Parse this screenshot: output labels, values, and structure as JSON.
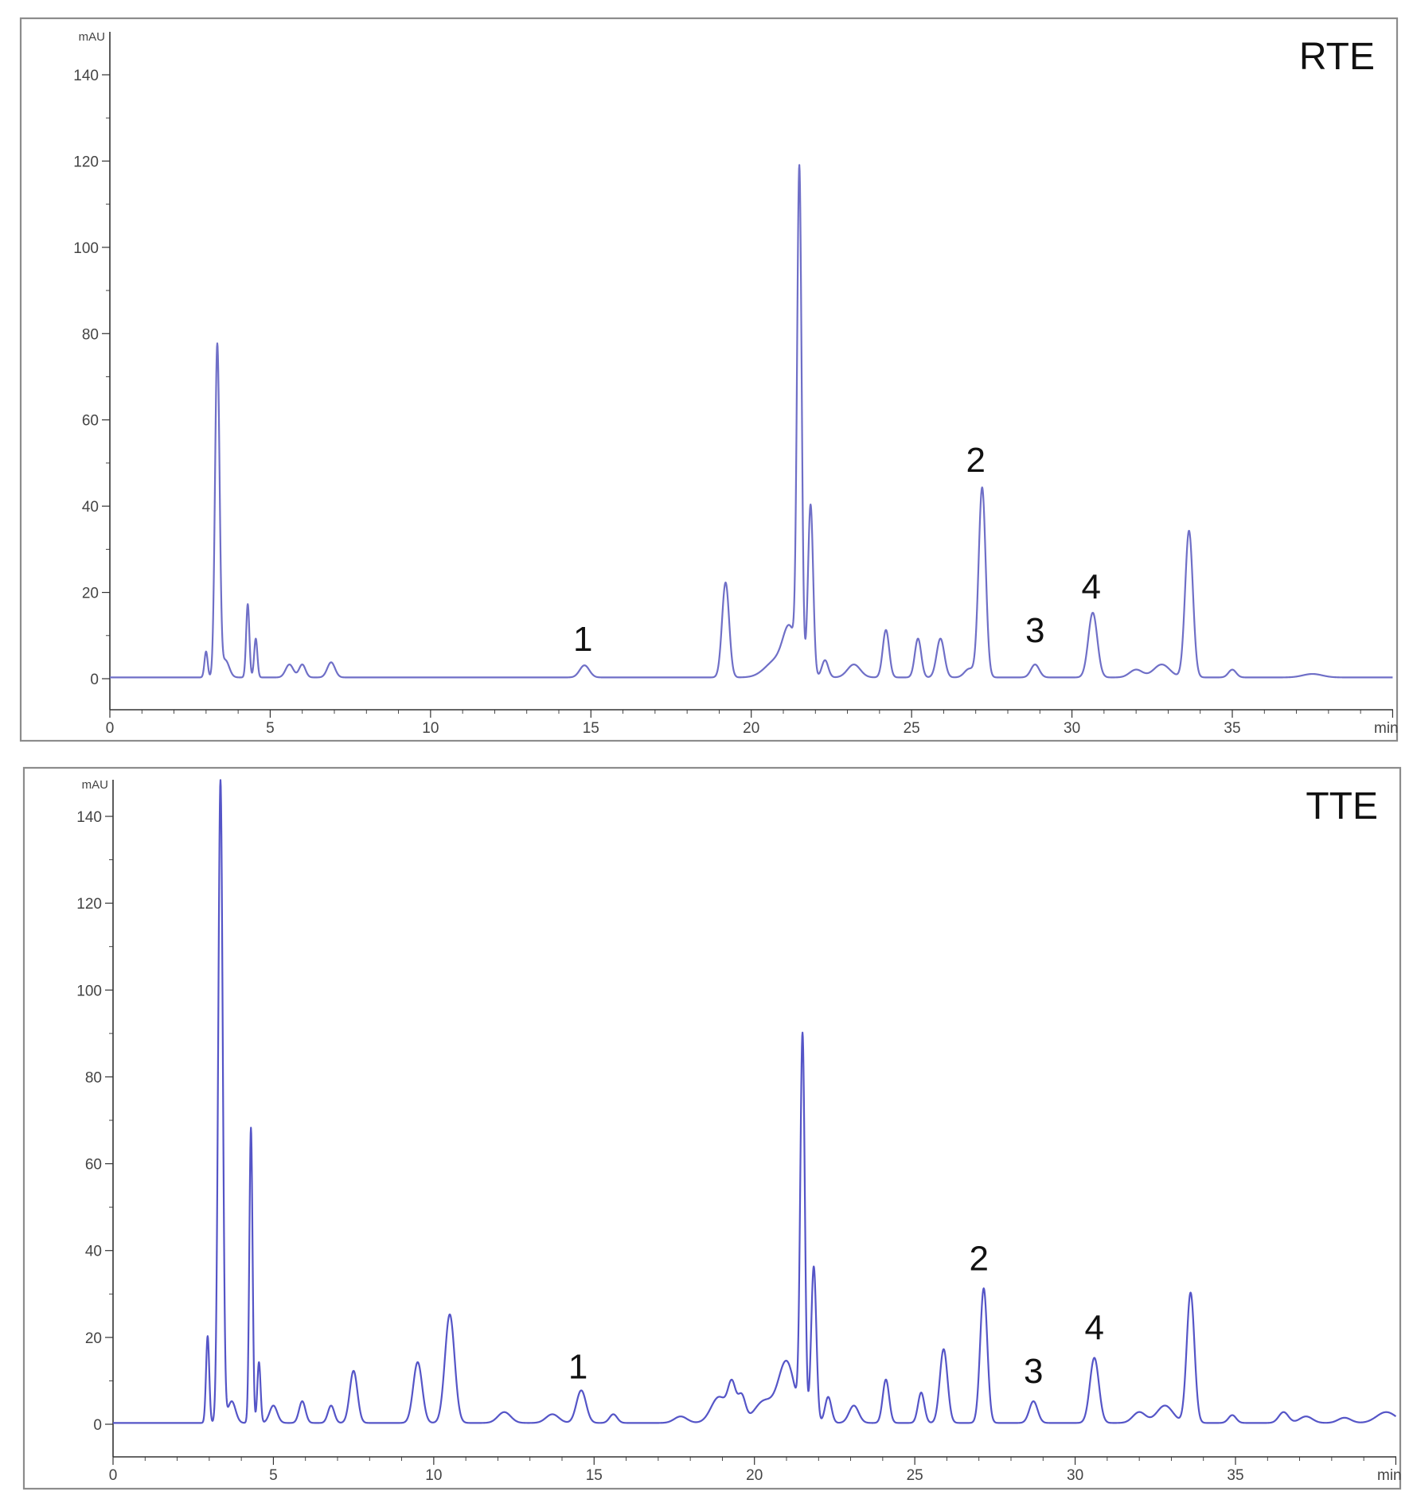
{
  "chart_data": [
    {
      "type": "line",
      "title": "RTE",
      "xlabel": "min",
      "ylabel": "mAU",
      "xlim": [
        0,
        40
      ],
      "ylim": [
        -7,
        150
      ],
      "x_ticks": [
        "0",
        "5",
        "10",
        "15",
        "20",
        "25",
        "30",
        "35"
      ],
      "x_tick_values": [
        0,
        5,
        10,
        15,
        20,
        25,
        30,
        35
      ],
      "y_ticks": [
        "0",
        "20",
        "40",
        "60",
        "80",
        "100",
        "120",
        "140"
      ],
      "y_tick_values": [
        0,
        20,
        40,
        60,
        80,
        100,
        120,
        140
      ],
      "color": "#6f6fc7",
      "baseline": 0.3,
      "peaks": [
        {
          "t": 3.0,
          "h": 6,
          "w": 0.05
        },
        {
          "t": 3.35,
          "h": 77,
          "w": 0.07
        },
        {
          "t": 3.6,
          "h": 4,
          "w": 0.12
        },
        {
          "t": 4.3,
          "h": 17,
          "w": 0.05
        },
        {
          "t": 4.55,
          "h": 9,
          "w": 0.05
        },
        {
          "t": 5.6,
          "h": 3,
          "w": 0.12
        },
        {
          "t": 6.0,
          "h": 3,
          "w": 0.1
        },
        {
          "t": 6.9,
          "h": 3.5,
          "w": 0.12
        },
        {
          "t": 14.8,
          "h": 2.8,
          "w": 0.15
        },
        {
          "t": 19.2,
          "h": 22,
          "w": 0.11
        },
        {
          "t": 20.8,
          "h": 4,
          "w": 0.35
        },
        {
          "t": 21.2,
          "h": 10,
          "w": 0.2
        },
        {
          "t": 21.5,
          "h": 115,
          "w": 0.07
        },
        {
          "t": 21.85,
          "h": 40,
          "w": 0.08
        },
        {
          "t": 22.3,
          "h": 4,
          "w": 0.1
        },
        {
          "t": 23.2,
          "h": 3,
          "w": 0.2
        },
        {
          "t": 24.2,
          "h": 11,
          "w": 0.1
        },
        {
          "t": 25.2,
          "h": 9,
          "w": 0.1
        },
        {
          "t": 25.9,
          "h": 9,
          "w": 0.12
        },
        {
          "t": 26.8,
          "h": 2,
          "w": 0.15
        },
        {
          "t": 27.2,
          "h": 44,
          "w": 0.11
        },
        {
          "t": 28.85,
          "h": 3,
          "w": 0.13
        },
        {
          "t": 30.65,
          "h": 15,
          "w": 0.14
        },
        {
          "t": 32.0,
          "h": 1.8,
          "w": 0.2
        },
        {
          "t": 32.8,
          "h": 3,
          "w": 0.25
        },
        {
          "t": 33.65,
          "h": 34,
          "w": 0.12
        },
        {
          "t": 35.0,
          "h": 1.8,
          "w": 0.12
        },
        {
          "t": 37.5,
          "h": 0.8,
          "w": 0.3
        }
      ],
      "annotations": [
        {
          "text": "1",
          "t": 14.75,
          "y": 6.5
        },
        {
          "text": "2",
          "t": 27.0,
          "y": 48
        },
        {
          "text": "3",
          "t": 28.85,
          "y": 8.5
        },
        {
          "text": "4",
          "t": 30.6,
          "y": 18.5
        }
      ]
    },
    {
      "type": "line",
      "title": "TTE",
      "xlabel": "min",
      "ylabel": "mAU",
      "xlim": [
        0,
        40
      ],
      "ylim": [
        -7,
        150
      ],
      "x_ticks": [
        "0",
        "5",
        "10",
        "15",
        "20",
        "25",
        "30",
        "35"
      ],
      "x_tick_values": [
        0,
        5,
        10,
        15,
        20,
        25,
        30,
        35
      ],
      "y_ticks": [
        "0",
        "20",
        "40",
        "60",
        "80",
        "100",
        "120",
        "140"
      ],
      "y_tick_values": [
        0,
        20,
        40,
        60,
        80,
        100,
        120,
        140
      ],
      "color": "#5555c7",
      "baseline": 0.3,
      "peaks": [
        {
          "t": 2.95,
          "h": 20,
          "w": 0.05
        },
        {
          "t": 3.35,
          "h": 148,
          "w": 0.07
        },
        {
          "t": 3.7,
          "h": 5,
          "w": 0.12
        },
        {
          "t": 4.3,
          "h": 68,
          "w": 0.05
        },
        {
          "t": 4.55,
          "h": 14,
          "w": 0.05
        },
        {
          "t": 5.0,
          "h": 4,
          "w": 0.12
        },
        {
          "t": 5.9,
          "h": 5,
          "w": 0.1
        },
        {
          "t": 6.8,
          "h": 4,
          "w": 0.1
        },
        {
          "t": 7.5,
          "h": 12,
          "w": 0.12
        },
        {
          "t": 9.5,
          "h": 14,
          "w": 0.14
        },
        {
          "t": 10.5,
          "h": 25,
          "w": 0.15
        },
        {
          "t": 12.2,
          "h": 2.5,
          "w": 0.2
        },
        {
          "t": 13.7,
          "h": 2,
          "w": 0.2
        },
        {
          "t": 14.6,
          "h": 7.5,
          "w": 0.15
        },
        {
          "t": 15.6,
          "h": 2,
          "w": 0.12
        },
        {
          "t": 17.7,
          "h": 1.5,
          "w": 0.2
        },
        {
          "t": 18.9,
          "h": 6,
          "w": 0.25
        },
        {
          "t": 19.3,
          "h": 8,
          "w": 0.12
        },
        {
          "t": 19.6,
          "h": 6,
          "w": 0.12
        },
        {
          "t": 20.3,
          "h": 5,
          "w": 0.3
        },
        {
          "t": 21.0,
          "h": 14,
          "w": 0.25
        },
        {
          "t": 21.5,
          "h": 88,
          "w": 0.07
        },
        {
          "t": 21.85,
          "h": 36,
          "w": 0.08
        },
        {
          "t": 22.3,
          "h": 6,
          "w": 0.1
        },
        {
          "t": 23.1,
          "h": 4,
          "w": 0.15
        },
        {
          "t": 24.1,
          "h": 10,
          "w": 0.1
        },
        {
          "t": 25.2,
          "h": 7,
          "w": 0.1
        },
        {
          "t": 25.9,
          "h": 17,
          "w": 0.12
        },
        {
          "t": 27.15,
          "h": 31,
          "w": 0.11
        },
        {
          "t": 28.7,
          "h": 5,
          "w": 0.13
        },
        {
          "t": 30.6,
          "h": 15,
          "w": 0.14
        },
        {
          "t": 32.0,
          "h": 2.5,
          "w": 0.2
        },
        {
          "t": 32.8,
          "h": 4,
          "w": 0.25
        },
        {
          "t": 33.6,
          "h": 30,
          "w": 0.12
        },
        {
          "t": 34.9,
          "h": 1.8,
          "w": 0.12
        },
        {
          "t": 36.5,
          "h": 2.5,
          "w": 0.15
        },
        {
          "t": 37.2,
          "h": 1.5,
          "w": 0.2
        },
        {
          "t": 38.4,
          "h": 1.2,
          "w": 0.2
        },
        {
          "t": 39.7,
          "h": 2.5,
          "w": 0.3
        }
      ],
      "annotations": [
        {
          "text": "1",
          "t": 14.5,
          "y": 10.5
        },
        {
          "text": "2",
          "t": 27.0,
          "y": 35.5
        },
        {
          "text": "3",
          "t": 28.7,
          "y": 9.5
        },
        {
          "text": "4",
          "t": 30.6,
          "y": 19.5
        }
      ]
    }
  ]
}
